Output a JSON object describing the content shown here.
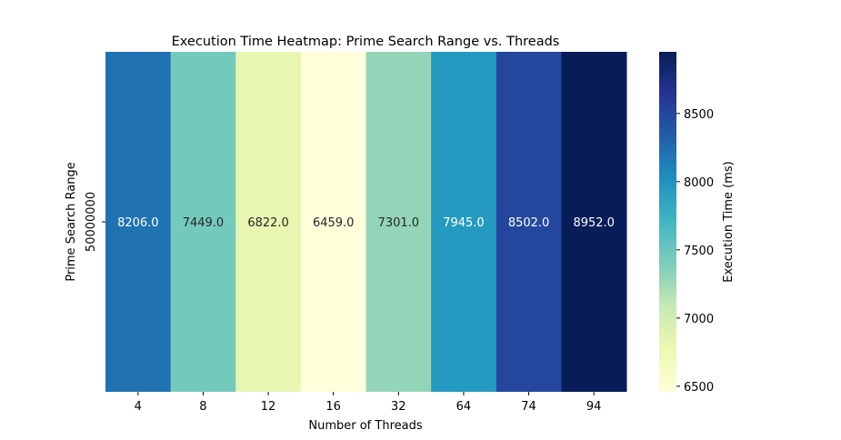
{
  "chart_data": {
    "type": "heatmap",
    "title": "Execution Time Heatmap: Prime Search Range vs. Threads",
    "xlabel": "Number of Threads",
    "ylabel": "Prime Search Range",
    "x_categories": [
      "4",
      "8",
      "12",
      "16",
      "32",
      "64",
      "74",
      "94"
    ],
    "y_categories": [
      "50000000"
    ],
    "values": [
      [
        8206.0,
        7449.0,
        6822.0,
        6459.0,
        7301.0,
        7945.0,
        8502.0,
        8952.0
      ]
    ],
    "value_labels": [
      "8206.0",
      "7449.0",
      "6822.0",
      "6459.0",
      "7301.0",
      "7945.0",
      "8502.0",
      "8952.0"
    ],
    "colormap": "YlGnBu",
    "colorbar": {
      "label": "Execution Time (ms)",
      "range": [
        6459.0,
        8952.0
      ],
      "ticks": [
        6500,
        7000,
        7500,
        8000,
        8500
      ],
      "tick_labels": [
        "6500",
        "7000",
        "7500",
        "8000",
        "8500"
      ]
    }
  }
}
